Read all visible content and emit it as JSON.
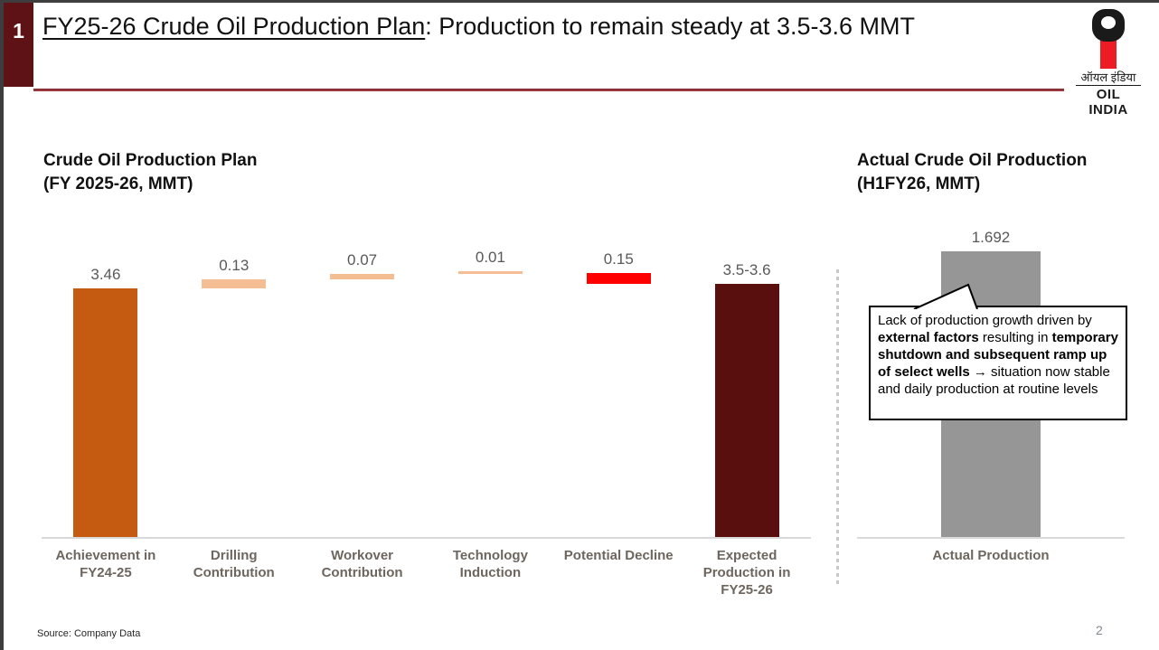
{
  "header": {
    "slide_number": "1",
    "title_underlined": "FY25-26 Crude Oil Production Plan",
    "title_rest": ": Production to remain steady at 3.5-3.6 MMT",
    "logo": {
      "hindi": "ऑयल इंडिया",
      "english": "OIL INDIA",
      "red": "#ed1c24"
    }
  },
  "left_chart": {
    "title_line1": "Crude Oil Production Plan",
    "title_line2": "(FY 2025-26, MMT)"
  },
  "right_chart": {
    "title_line1": "Actual Crude Oil Production",
    "title_line2": "(H1FY26, MMT)"
  },
  "callout": {
    "segments": [
      {
        "text": "Lack of production growth driven by ",
        "bold": false
      },
      {
        "text": "external factors",
        "bold": true
      },
      {
        "text": " resulting in ",
        "bold": false
      },
      {
        "text": "temporary shutdown and subsequent ramp up of select wells",
        "bold": true
      },
      {
        "text": " → situation now stable and daily production at routine levels",
        "bold": false
      }
    ]
  },
  "footer": {
    "source": "Source: Company Data",
    "page_number": "2"
  },
  "chart_data": [
    {
      "type": "bar",
      "subtype": "waterfall",
      "title": "Crude Oil Production Plan (FY 2025-26, MMT)",
      "unit": "MMT",
      "categories": [
        "Achievement in FY24-25",
        "Drilling Contribution",
        "Workover Contribution",
        "Technology Induction",
        "Potential Decline",
        "Expected Production in FY25-26"
      ],
      "values": [
        3.46,
        0.13,
        0.07,
        0.01,
        -0.15,
        3.52
      ],
      "value_labels": [
        "3.46",
        "0.13",
        "0.07",
        "0.01",
        "0.15",
        "3.5-3.6"
      ],
      "segments": [
        [
          0,
          3.46
        ],
        [
          3.46,
          3.59
        ],
        [
          3.59,
          3.66
        ],
        [
          3.66,
          3.67
        ],
        [
          3.52,
          3.67
        ],
        [
          0,
          3.52
        ]
      ],
      "colors": [
        "#C55A11",
        "#F5BD93",
        "#F5BD93",
        "#F5BD93",
        "#FF0000",
        "#5A0F0F"
      ],
      "ylim": [
        0,
        4.4
      ],
      "grid": false,
      "legend": false
    },
    {
      "type": "bar",
      "title": "Actual Crude Oil Production (H1FY26, MMT)",
      "unit": "MMT",
      "categories": [
        "Actual Production"
      ],
      "values": [
        1.692
      ],
      "value_labels": [
        "1.692"
      ],
      "colors": [
        "#969696"
      ],
      "ylim": [
        0,
        1.9
      ],
      "grid": false,
      "legend": false
    }
  ]
}
